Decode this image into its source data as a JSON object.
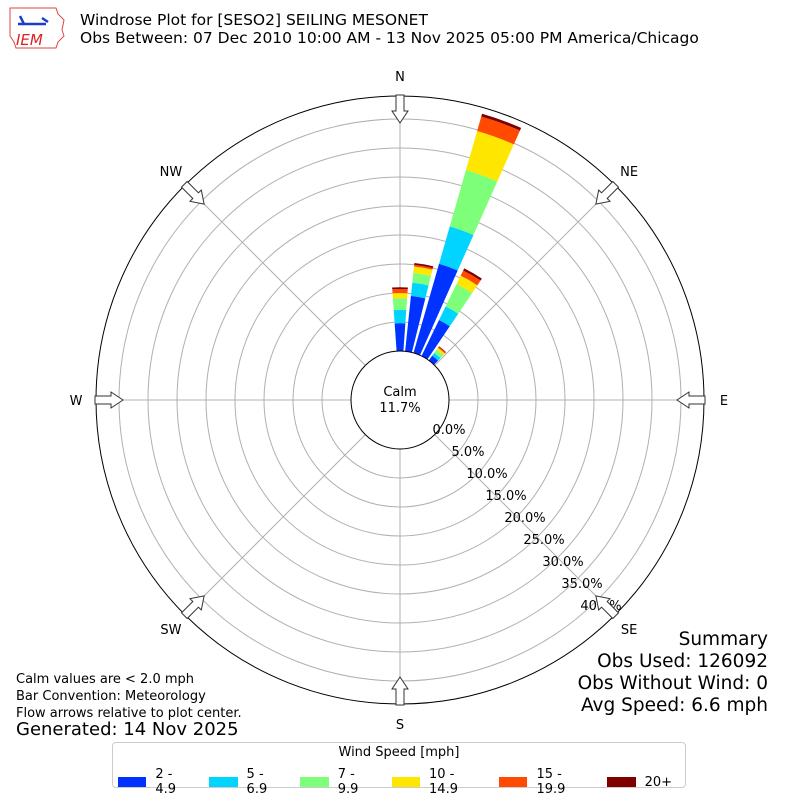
{
  "header": {
    "title": "Windrose Plot for [SESO2] SEILING MESONET",
    "subtitle": "Obs Between: 07 Dec 2010 10:00 AM - 13 Nov 2025 05:00 PM America/Chicago",
    "logo_text": "IEM"
  },
  "notes": {
    "calm_note": "Calm values are < 2.0 mph",
    "bar_convention": "Bar Convention: Meteorology",
    "flow_arrows": "Flow arrows relative to plot center.",
    "generated": "Generated: 14 Nov 2025"
  },
  "summary": {
    "title": "Summary",
    "obs_used": "Obs Used: 126092",
    "obs_without_wind": "Obs Without Wind: 0",
    "avg_speed": "Avg Speed: 6.6 mph"
  },
  "chart_data": {
    "type": "windrose",
    "calm_label": "Calm",
    "calm_value": "11.7%",
    "direction_labels": [
      "N",
      "NE",
      "E",
      "SE",
      "S",
      "SW",
      "W",
      "NW"
    ],
    "radial_ticks": [
      "0.0%",
      "5.0%",
      "10.0%",
      "15.0%",
      "20.0%",
      "25.0%",
      "30.0%",
      "35.0%",
      "40.0%"
    ],
    "radial_max": 43.8,
    "grid": true,
    "legend_title": "Wind Speed [mph]",
    "legend_placement": "bottom",
    "bins": [
      {
        "label": "2 - 4.9",
        "color": "#0033ff"
      },
      {
        "label": "5 - 6.9",
        "color": "#00d4ff"
      },
      {
        "label": "7 - 9.9",
        "color": "#7dff7a"
      },
      {
        "label": "10 - 14.9",
        "color": "#ffe600"
      },
      {
        "label": "15 - 19.9",
        "color": "#ff4a00"
      },
      {
        "label": "20+",
        "color": "#800000"
      }
    ],
    "series_note": "cumulative percent per direction (degrees), in bin order",
    "directions": [
      {
        "deg": 0,
        "cumulative": [
          4.8,
          7.1,
          9.1,
          10.0,
          10.7,
          11.0
        ]
      },
      {
        "deg": 10,
        "cumulative": [
          9.6,
          11.9,
          13.6,
          14.7,
          15.0,
          15.3
        ]
      },
      {
        "deg": 20,
        "cumulative": [
          16.0,
          22.7,
          32.8,
          39.8,
          42.4,
          42.9
        ]
      },
      {
        "deg": 30,
        "cumulative": [
          6.9,
          9.5,
          13.8,
          15.4,
          16.4,
          16.8
        ]
      },
      {
        "deg": 40,
        "cumulative": [
          1.0,
          1.6,
          2.3,
          2.7,
          2.9,
          3.0
        ]
      }
    ]
  }
}
